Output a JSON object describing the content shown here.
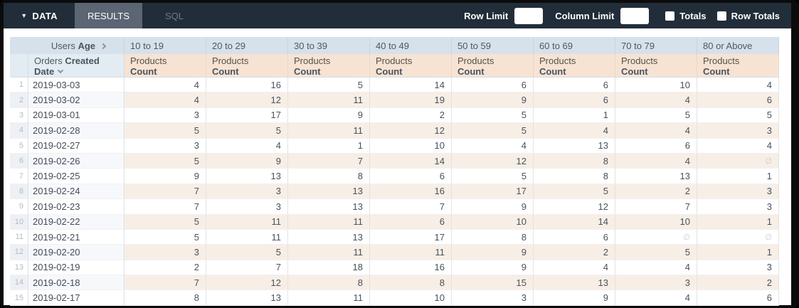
{
  "toolbar": {
    "tabs": [
      {
        "label": "DATA"
      },
      {
        "label": "RESULTS"
      },
      {
        "label": "SQL"
      }
    ],
    "row_limit_label": "Row Limit",
    "row_limit_value": "",
    "column_limit_label": "Column Limit",
    "column_limit_value": "",
    "totals_label": "Totals",
    "totals_checked": false,
    "row_totals_label": "Row Totals",
    "row_totals_checked": false
  },
  "table": {
    "pivot_field": {
      "prefix": "Users",
      "name": "Age"
    },
    "row_field": {
      "prefix": "Orders",
      "name": "Created Date"
    },
    "measure": {
      "prefix": "Products",
      "name": "Count"
    },
    "pivot_values": [
      "10 to 19",
      "20 to 29",
      "30 to 39",
      "40 to 49",
      "50 to 59",
      "60 to 69",
      "70 to 79",
      "80 or Above"
    ],
    "null_symbol": "∅",
    "rows": [
      {
        "index": 1,
        "date": "2019-03-03",
        "values": [
          4,
          16,
          5,
          14,
          6,
          6,
          10,
          4
        ]
      },
      {
        "index": 2,
        "date": "2019-03-02",
        "values": [
          4,
          12,
          11,
          19,
          9,
          6,
          4,
          6
        ]
      },
      {
        "index": 3,
        "date": "2019-03-01",
        "values": [
          3,
          17,
          9,
          2,
          5,
          1,
          5,
          5
        ]
      },
      {
        "index": 4,
        "date": "2019-02-28",
        "values": [
          5,
          5,
          11,
          12,
          5,
          4,
          4,
          3
        ]
      },
      {
        "index": 5,
        "date": "2019-02-27",
        "values": [
          3,
          4,
          1,
          10,
          4,
          13,
          6,
          4
        ]
      },
      {
        "index": 6,
        "date": "2019-02-26",
        "values": [
          5,
          9,
          7,
          14,
          12,
          8,
          4,
          null
        ]
      },
      {
        "index": 7,
        "date": "2019-02-25",
        "values": [
          9,
          13,
          8,
          6,
          5,
          8,
          13,
          1
        ]
      },
      {
        "index": 8,
        "date": "2019-02-24",
        "values": [
          7,
          3,
          13,
          16,
          17,
          5,
          2,
          3
        ]
      },
      {
        "index": 9,
        "date": "2019-02-23",
        "values": [
          7,
          3,
          13,
          7,
          9,
          12,
          7,
          3
        ]
      },
      {
        "index": 10,
        "date": "2019-02-22",
        "values": [
          5,
          11,
          11,
          6,
          10,
          14,
          10,
          1
        ]
      },
      {
        "index": 11,
        "date": "2019-02-21",
        "values": [
          5,
          11,
          13,
          17,
          8,
          6,
          null,
          null
        ]
      },
      {
        "index": 12,
        "date": "2019-02-20",
        "values": [
          3,
          5,
          11,
          11,
          9,
          2,
          5,
          1
        ]
      },
      {
        "index": 13,
        "date": "2019-02-19",
        "values": [
          2,
          7,
          18,
          16,
          9,
          4,
          4,
          3
        ]
      },
      {
        "index": 14,
        "date": "2019-02-18",
        "values": [
          7,
          12,
          8,
          8,
          15,
          13,
          3,
          2
        ]
      },
      {
        "index": 15,
        "date": "2019-02-17",
        "values": [
          8,
          13,
          11,
          10,
          3,
          9,
          4,
          6
        ]
      }
    ]
  },
  "colors": {
    "toolbar_bg": "#222d3a",
    "active_tab_bg": "#5b6573",
    "muted_tab_text": "#6e7a89",
    "dimension_header_bg": "#d7e1eb",
    "dimension_subheader_bg": "#e4ecf3",
    "measure_header_bg": "#f7e3d3",
    "even_row_measure_bg": "#f7eee6",
    "even_row_dimension_bg": "#f6f8fb"
  }
}
